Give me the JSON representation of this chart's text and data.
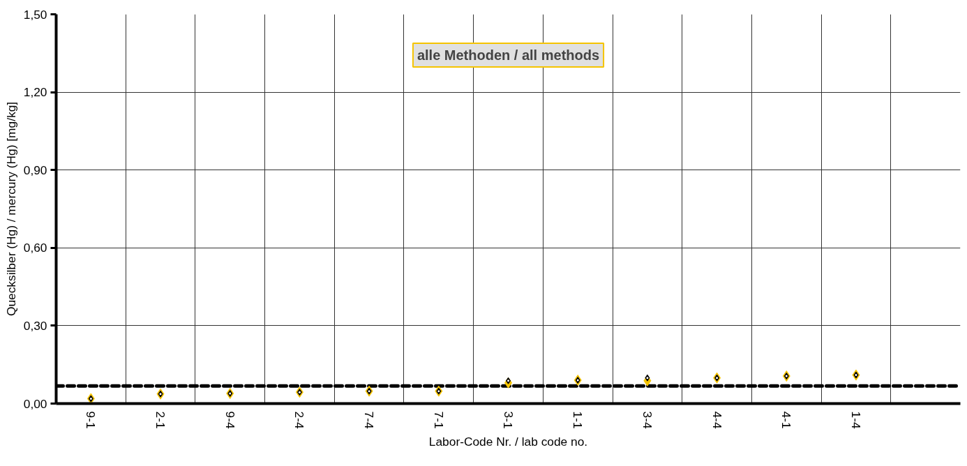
{
  "chart_data": {
    "type": "scatter",
    "categories": [
      "9-1",
      "2-1",
      "9-4",
      "2-4",
      "7-4",
      "7-1",
      "3-1",
      "1-1",
      "3-4",
      "4-4",
      "4-1",
      "1-4",
      null
    ],
    "series": [
      {
        "color": "#f5c400",
        "marker": "diamond",
        "values": [
          0.019,
          0.037,
          0.039,
          0.044,
          0.048,
          0.048,
          0.08,
          0.09,
          0.088,
          0.099,
          0.106,
          0.11,
          null
        ]
      },
      {
        "color": "#000000",
        "marker": "diamond",
        "values": [
          0.019,
          0.037,
          0.039,
          0.044,
          0.048,
          0.048,
          0.088,
          0.09,
          0.099,
          0.099,
          0.106,
          0.11,
          null
        ]
      }
    ],
    "xlabel": "Labor-Code Nr. / lab code no.",
    "ylabel": "Quecksilber (Hg) / mercury (Hg) [mg/kg]",
    "ylim": [
      0,
      1.5
    ],
    "yticks": [
      {
        "value": 0,
        "label": "0,00"
      },
      {
        "value": 0.3,
        "label": "0,30"
      },
      {
        "value": 0.6,
        "label": "0,60"
      },
      {
        "value": 0.9,
        "label": "0,90"
      },
      {
        "value": 1.2,
        "label": "1,20"
      },
      {
        "value": 1.5,
        "label": "1,50"
      }
    ],
    "ref_lines": [
      {
        "axis": "y",
        "value": 0.068,
        "color": "#000000",
        "line_style": "dashed"
      }
    ],
    "annotations": [
      "alle Methoden / all methods"
    ],
    "grid": true
  }
}
